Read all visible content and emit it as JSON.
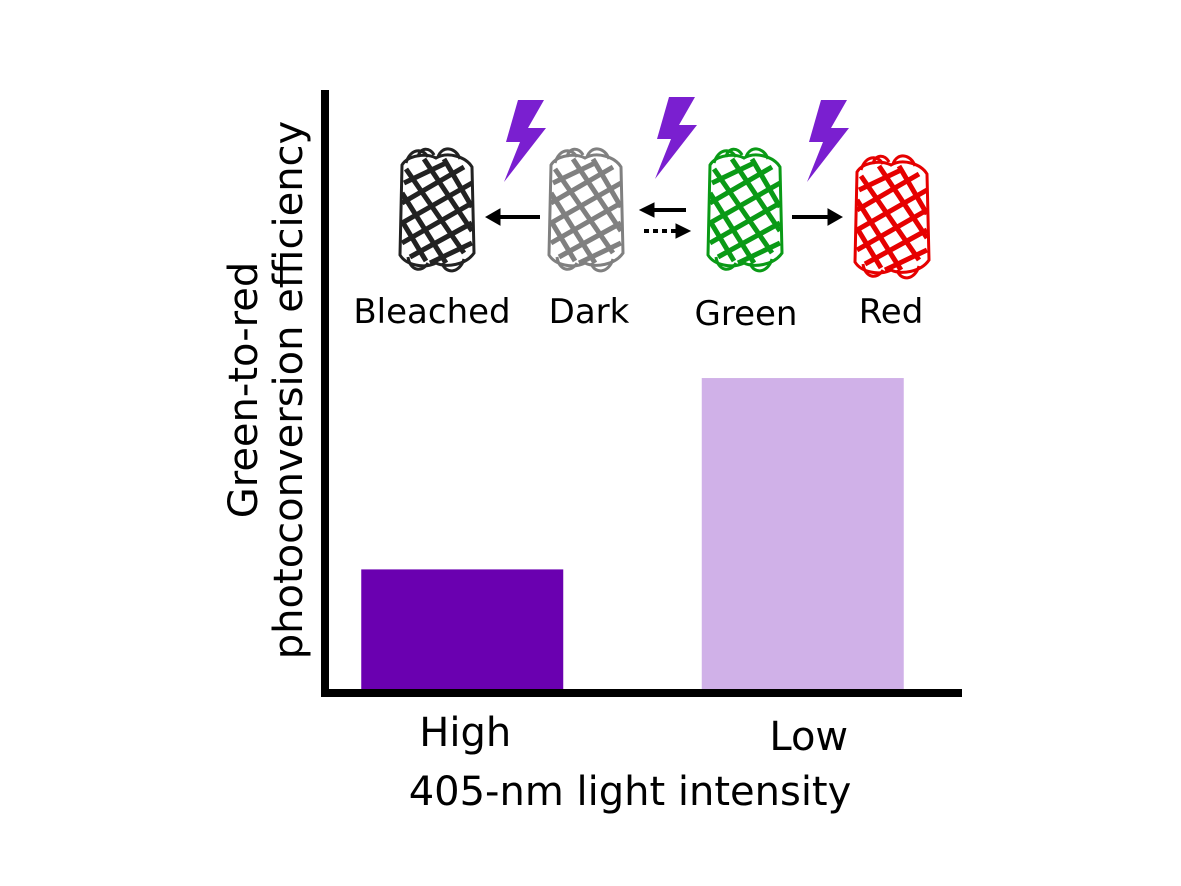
{
  "chart_data": {
    "type": "bar",
    "categories": [
      "High",
      "Low"
    ],
    "values": [
      0.2,
      0.52
    ],
    "bar_colors": [
      "#6a00b0",
      "#d0b1e8"
    ],
    "xlabel": "405-nm light intensity",
    "ylabel_lines": [
      "Green-to-red",
      "photoconversion efficiency"
    ],
    "ylim": [
      0,
      1
    ],
    "grid": false,
    "legend": "none"
  },
  "inset": {
    "states": [
      {
        "label": "Bleached",
        "color": "#222222",
        "icon": "barrel-protein-icon"
      },
      {
        "label": "Dark",
        "color": "#808080",
        "icon": "barrel-protein-icon"
      },
      {
        "label": "Green",
        "color": "#0a9a16",
        "icon": "barrel-protein-icon"
      },
      {
        "label": "Red",
        "color": "#e60000",
        "icon": "barrel-protein-icon"
      }
    ],
    "light_color": "#7a1fd0",
    "light_icon": "lightning-bolt-icon"
  }
}
